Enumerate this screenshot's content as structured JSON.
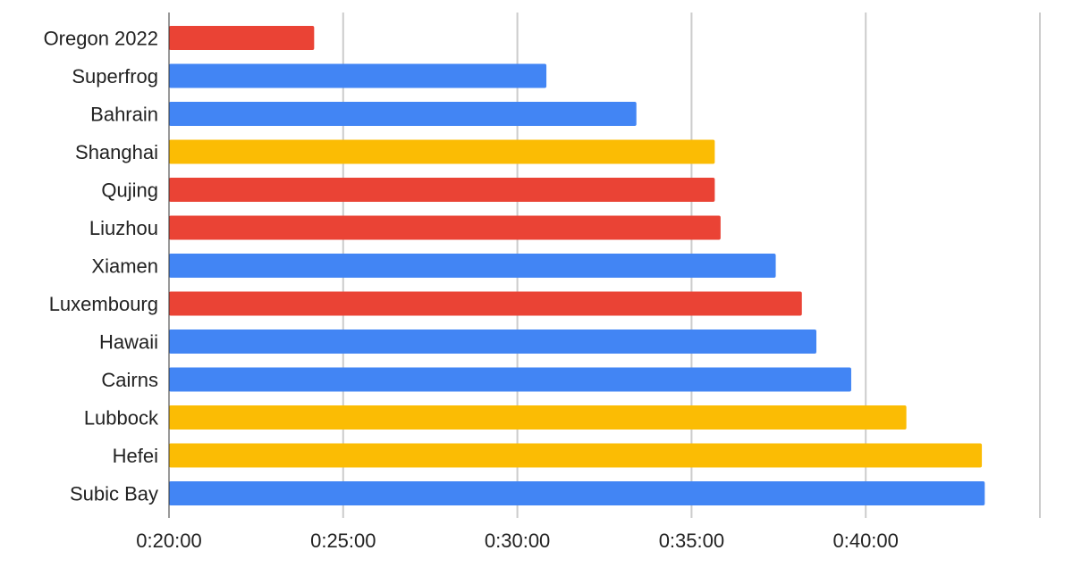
{
  "chart_data": {
    "type": "bar",
    "orientation": "horizontal",
    "title": "",
    "xlabel": "",
    "ylabel": "",
    "x_unit": "h:mm:ss",
    "xlim": [
      "0:20:00",
      "0:45:00"
    ],
    "x_ticks": [
      "0:20:00",
      "0:25:00",
      "0:30:00",
      "0:35:00",
      "0:40:00"
    ],
    "grid": true,
    "legend": "none",
    "categories": [
      "Oregon 2022",
      "Superfrog",
      "Bahrain",
      "Shanghai",
      "Qujing",
      "Liuzhou",
      "Xiamen",
      "Luxembourg",
      "Hawaii",
      "Cairns",
      "Lubbock",
      "Hefei",
      "Subic Bay"
    ],
    "values": [
      "0:24:10",
      "0:30:50",
      "0:33:25",
      "0:35:40",
      "0:35:40",
      "0:35:50",
      "0:37:25",
      "0:38:10",
      "0:38:35",
      "0:39:35",
      "0:41:10",
      "0:43:20",
      "0:43:25"
    ],
    "bar_colors": [
      "#EA4335",
      "#4285F4",
      "#4285F4",
      "#FBBC04",
      "#EA4335",
      "#EA4335",
      "#4285F4",
      "#EA4335",
      "#4285F4",
      "#4285F4",
      "#FBBC04",
      "#FBBC04",
      "#4285F4"
    ]
  }
}
